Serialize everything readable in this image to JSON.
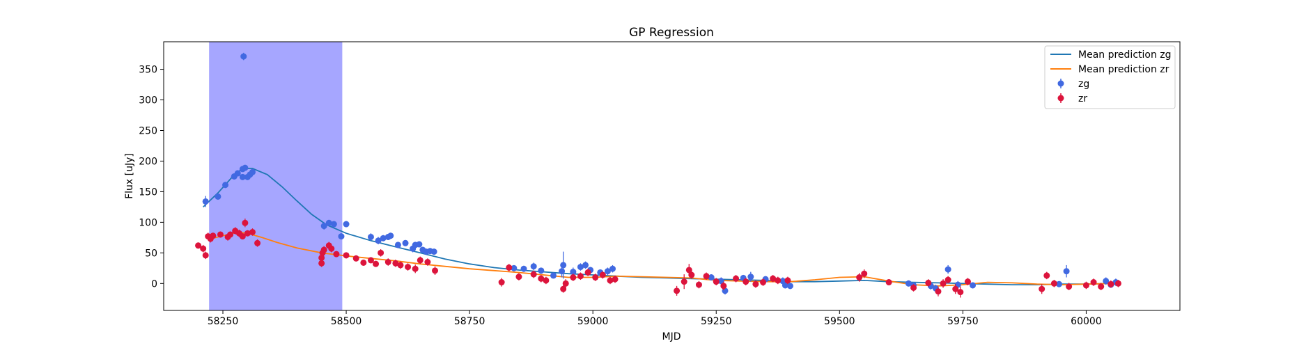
{
  "chart_data": {
    "type": "scatter",
    "title": "GP Regression",
    "xlabel": "MJD",
    "ylabel": "Flux [uJy]",
    "xlim": [
      58130,
      60190
    ],
    "ylim": [
      -44,
      395
    ],
    "xticks": [
      58250,
      58500,
      58750,
      59000,
      59250,
      59500,
      59750,
      60000
    ],
    "xtick_labels": [
      "58250",
      "58500",
      "58750",
      "59000",
      "59250",
      "59500",
      "59750",
      "60000"
    ],
    "yticks": [
      0,
      50,
      100,
      150,
      200,
      250,
      300,
      350
    ],
    "ytick_labels": [
      "0",
      "50",
      "100",
      "150",
      "200",
      "250",
      "300",
      "350"
    ],
    "grid": false,
    "legend_position": "top-right",
    "shaded_region": {
      "x0": 58222,
      "x1": 58492,
      "color": "#a6a6ff"
    },
    "colors": {
      "zg_line": "#1f77b4",
      "zr_line": "#ff7f0e",
      "zg_points": "#4169e1",
      "zr_points": "#dc143c"
    },
    "legend": [
      {
        "label": "Mean prediction zg",
        "kind": "line",
        "color": "#1f77b4"
      },
      {
        "label": "Mean prediction zr",
        "kind": "line",
        "color": "#ff7f0e"
      },
      {
        "label": "zg",
        "kind": "marker",
        "color": "#4169e1"
      },
      {
        "label": "zr",
        "kind": "marker",
        "color": "#dc143c"
      }
    ],
    "lines": [
      {
        "name": "Mean prediction zg",
        "color": "#1f77b4",
        "points": [
          [
            58210,
            125
          ],
          [
            58240,
            148
          ],
          [
            58270,
            175
          ],
          [
            58290,
            188
          ],
          [
            58310,
            188
          ],
          [
            58340,
            178
          ],
          [
            58370,
            158
          ],
          [
            58400,
            135
          ],
          [
            58430,
            113
          ],
          [
            58460,
            96
          ],
          [
            58500,
            82
          ],
          [
            58550,
            70
          ],
          [
            58600,
            60
          ],
          [
            58650,
            50
          ],
          [
            58700,
            40
          ],
          [
            58750,
            32
          ],
          [
            58800,
            26
          ],
          [
            58850,
            22
          ],
          [
            58900,
            19
          ],
          [
            58950,
            16
          ],
          [
            59000,
            14
          ],
          [
            59050,
            12
          ],
          [
            59100,
            10
          ],
          [
            59150,
            9
          ],
          [
            59200,
            8
          ],
          [
            59250,
            7
          ],
          [
            59300,
            6
          ],
          [
            59350,
            5
          ],
          [
            59400,
            3
          ],
          [
            59450,
            3
          ],
          [
            59500,
            4
          ],
          [
            59550,
            5
          ],
          [
            59600,
            3
          ],
          [
            59650,
            2
          ],
          [
            59700,
            1
          ],
          [
            59750,
            0
          ],
          [
            59800,
            -1
          ],
          [
            59850,
            -2
          ],
          [
            59900,
            -2
          ],
          [
            59950,
            -1
          ],
          [
            60000,
            -1
          ],
          [
            60050,
            0
          ],
          [
            60070,
            1
          ]
        ]
      },
      {
        "name": "Mean prediction zr",
        "color": "#ff7f0e",
        "points": [
          [
            58220,
            72
          ],
          [
            58250,
            78
          ],
          [
            58280,
            84
          ],
          [
            58300,
            82
          ],
          [
            58330,
            75
          ],
          [
            58360,
            67
          ],
          [
            58400,
            58
          ],
          [
            58450,
            50
          ],
          [
            58500,
            45
          ],
          [
            58550,
            41
          ],
          [
            58600,
            37
          ],
          [
            58650,
            32
          ],
          [
            58700,
            28
          ],
          [
            58750,
            24
          ],
          [
            58800,
            21
          ],
          [
            58850,
            18
          ],
          [
            58900,
            14
          ],
          [
            58950,
            10
          ],
          [
            59000,
            10
          ],
          [
            59050,
            12
          ],
          [
            59100,
            11
          ],
          [
            59150,
            10
          ],
          [
            59200,
            9
          ],
          [
            59250,
            5
          ],
          [
            59300,
            4
          ],
          [
            59350,
            3
          ],
          [
            59400,
            3
          ],
          [
            59450,
            6
          ],
          [
            59500,
            10
          ],
          [
            59550,
            11
          ],
          [
            59600,
            4
          ],
          [
            59650,
            -2
          ],
          [
            59700,
            -4
          ],
          [
            59750,
            -2
          ],
          [
            59800,
            2
          ],
          [
            59850,
            1
          ],
          [
            59900,
            -1
          ],
          [
            59950,
            -2
          ],
          [
            60000,
            -1
          ],
          [
            60050,
            0
          ],
          [
            60070,
            1
          ]
        ]
      }
    ],
    "series": [
      {
        "name": "zg",
        "color": "#4169e1",
        "points": [
          [
            58215,
            134,
            9
          ],
          [
            58240,
            142,
            4
          ],
          [
            58255,
            161,
            5
          ],
          [
            58273,
            175,
            5
          ],
          [
            58280,
            180,
            5
          ],
          [
            58290,
            187,
            4
          ],
          [
            58295,
            189,
            4
          ],
          [
            58300,
            174,
            4
          ],
          [
            58305,
            178,
            4
          ],
          [
            58310,
            182,
            5
          ],
          [
            58292,
            371,
            6
          ],
          [
            58290,
            174,
            4
          ],
          [
            58455,
            94,
            6
          ],
          [
            58465,
            99,
            5
          ],
          [
            58475,
            97,
            4
          ],
          [
            58490,
            77,
            5
          ],
          [
            58500,
            97,
            5
          ],
          [
            58550,
            76,
            6
          ],
          [
            58565,
            70,
            6
          ],
          [
            58575,
            74,
            5
          ],
          [
            58585,
            76,
            5
          ],
          [
            58590,
            78,
            5
          ],
          [
            58605,
            63,
            5
          ],
          [
            58620,
            66,
            5
          ],
          [
            58635,
            57,
            6
          ],
          [
            58640,
            63,
            5
          ],
          [
            58648,
            64,
            5
          ],
          [
            58655,
            55,
            5
          ],
          [
            58662,
            52,
            5
          ],
          [
            58670,
            53,
            5
          ],
          [
            58678,
            52,
            5
          ],
          [
            58840,
            25,
            5
          ],
          [
            58860,
            24,
            5
          ],
          [
            58880,
            28,
            6
          ],
          [
            58895,
            21,
            5
          ],
          [
            58920,
            13,
            4
          ],
          [
            58937,
            20,
            10
          ],
          [
            58940,
            30,
            22
          ],
          [
            58960,
            19,
            7
          ],
          [
            58975,
            27,
            6
          ],
          [
            58985,
            30,
            6
          ],
          [
            58995,
            22,
            5
          ],
          [
            59015,
            18,
            5
          ],
          [
            59030,
            20,
            6
          ],
          [
            59040,
            24,
            6
          ],
          [
            59240,
            10,
            5
          ],
          [
            59260,
            4,
            6
          ],
          [
            59268,
            -12,
            6
          ],
          [
            59305,
            9,
            5
          ],
          [
            59320,
            11,
            8
          ],
          [
            59350,
            7,
            5
          ],
          [
            59385,
            4,
            6
          ],
          [
            59390,
            -3,
            5
          ],
          [
            59400,
            -4,
            5
          ],
          [
            59640,
            0,
            5
          ],
          [
            59650,
            -3,
            5
          ],
          [
            59685,
            -4,
            6
          ],
          [
            59695,
            -8,
            6
          ],
          [
            59720,
            23,
            7
          ],
          [
            59740,
            -2,
            6
          ],
          [
            59770,
            -3,
            5
          ],
          [
            59945,
            -1,
            5
          ],
          [
            59960,
            20,
            10
          ],
          [
            60040,
            4,
            6
          ],
          [
            60050,
            -2,
            5
          ],
          [
            60060,
            2,
            6
          ]
        ]
      },
      {
        "name": "zr",
        "color": "#dc143c",
        "points": [
          [
            58200,
            62,
            5
          ],
          [
            58210,
            57,
            6
          ],
          [
            58215,
            46,
            6
          ],
          [
            58220,
            77,
            6
          ],
          [
            58225,
            73,
            6
          ],
          [
            58230,
            78,
            5
          ],
          [
            58245,
            80,
            5
          ],
          [
            58260,
            76,
            6
          ],
          [
            58265,
            80,
            5
          ],
          [
            58275,
            86,
            6
          ],
          [
            58283,
            82,
            6
          ],
          [
            58290,
            77,
            5
          ],
          [
            58295,
            99,
            7
          ],
          [
            58300,
            82,
            5
          ],
          [
            58310,
            84,
            6
          ],
          [
            58320,
            66,
            6
          ],
          [
            58450,
            33,
            6
          ],
          [
            58450,
            42,
            6
          ],
          [
            58452,
            50,
            7
          ],
          [
            58455,
            55,
            6
          ],
          [
            58465,
            62,
            6
          ],
          [
            58470,
            57,
            6
          ],
          [
            58480,
            48,
            5
          ],
          [
            58500,
            46,
            5
          ],
          [
            58520,
            41,
            5
          ],
          [
            58535,
            34,
            5
          ],
          [
            58550,
            38,
            5
          ],
          [
            58560,
            32,
            5
          ],
          [
            58570,
            50,
            6
          ],
          [
            58585,
            35,
            6
          ],
          [
            58600,
            33,
            6
          ],
          [
            58610,
            30,
            6
          ],
          [
            58625,
            27,
            6
          ],
          [
            58640,
            24,
            7
          ],
          [
            58650,
            38,
            6
          ],
          [
            58665,
            35,
            6
          ],
          [
            58680,
            21,
            7
          ],
          [
            58815,
            2,
            7
          ],
          [
            58830,
            26,
            6
          ],
          [
            58850,
            11,
            6
          ],
          [
            58880,
            15,
            6
          ],
          [
            58895,
            8,
            6
          ],
          [
            58905,
            5,
            6
          ],
          [
            58940,
            -9,
            6
          ],
          [
            58945,
            0,
            7
          ],
          [
            58960,
            10,
            6
          ],
          [
            58975,
            12,
            6
          ],
          [
            58990,
            18,
            6
          ],
          [
            59005,
            10,
            6
          ],
          [
            59020,
            14,
            6
          ],
          [
            59035,
            5,
            6
          ],
          [
            59045,
            7,
            6
          ],
          [
            59170,
            -12,
            8
          ],
          [
            59185,
            3,
            12
          ],
          [
            59195,
            22,
            10
          ],
          [
            59200,
            14,
            6
          ],
          [
            59215,
            -2,
            6
          ],
          [
            59230,
            12,
            6
          ],
          [
            59250,
            3,
            6
          ],
          [
            59265,
            -4,
            7
          ],
          [
            59290,
            8,
            6
          ],
          [
            59310,
            3,
            6
          ],
          [
            59330,
            -1,
            6
          ],
          [
            59345,
            2,
            6
          ],
          [
            59365,
            8,
            6
          ],
          [
            59375,
            5,
            6
          ],
          [
            59395,
            5,
            6
          ],
          [
            59540,
            10,
            7
          ],
          [
            59550,
            16,
            7
          ],
          [
            59600,
            2,
            5
          ],
          [
            59650,
            -7,
            6
          ],
          [
            59680,
            1,
            6
          ],
          [
            59700,
            -13,
            8
          ],
          [
            59710,
            0,
            7
          ],
          [
            59720,
            6,
            6
          ],
          [
            59735,
            -9,
            8
          ],
          [
            59745,
            -14,
            9
          ],
          [
            59760,
            3,
            6
          ],
          [
            59910,
            -9,
            8
          ],
          [
            59920,
            13,
            6
          ],
          [
            59935,
            0,
            6
          ],
          [
            59965,
            -5,
            6
          ],
          [
            60000,
            -3,
            6
          ],
          [
            60015,
            2,
            6
          ],
          [
            60030,
            -5,
            6
          ],
          [
            60050,
            -1,
            6
          ],
          [
            60065,
            0,
            6
          ]
        ]
      }
    ]
  }
}
